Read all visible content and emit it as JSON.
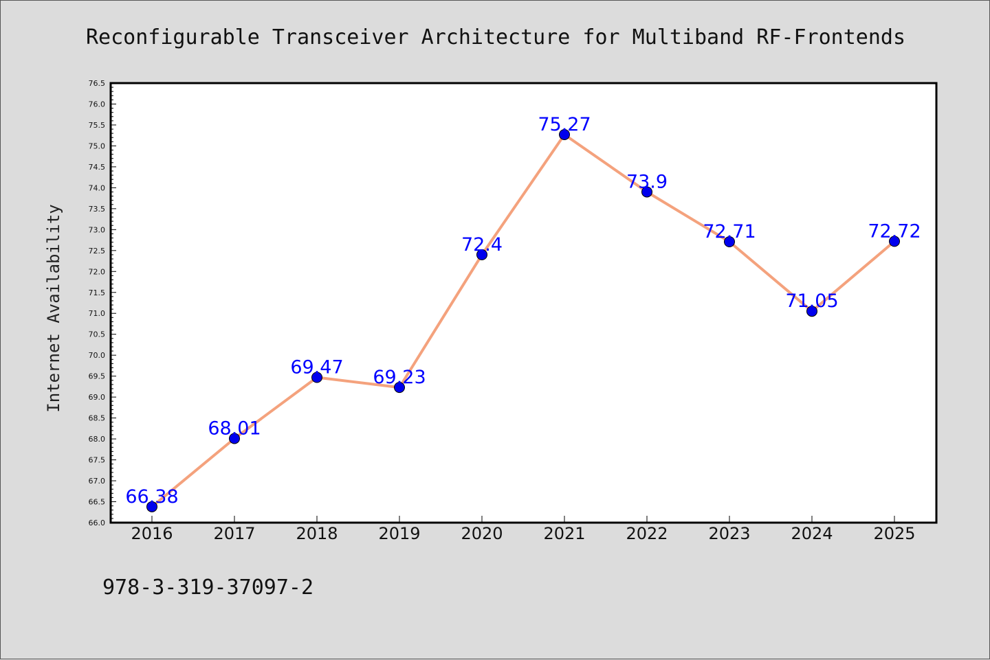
{
  "page": {
    "footer": "978-3-319-37097-2"
  },
  "colors": {
    "background": "#dcdcdc",
    "plot_background": "#ffffff",
    "line": "#f4a27d",
    "marker": "#0000ee",
    "data_label": "#0000ff"
  },
  "chart_data": {
    "type": "line",
    "title": "Reconfigurable Transceiver Architecture for Multiband RF-Frontends",
    "xlabel": "",
    "ylabel": "Internet Availability",
    "categories": [
      "2016",
      "2017",
      "2018",
      "2019",
      "2020",
      "2021",
      "2022",
      "2023",
      "2024",
      "2025"
    ],
    "series": [
      {
        "values": [
          66.38,
          68.01,
          69.47,
          69.23,
          72.4,
          75.27,
          73.9,
          72.71,
          71.05,
          72.72
        ],
        "labels": [
          "66.38",
          "68.01",
          "69.47",
          "69.23",
          "72.4",
          "75.27",
          "73.9",
          "72.71",
          "71.05",
          "72.72"
        ]
      }
    ],
    "ylim": [
      66.0,
      76.5
    ],
    "yticks": [
      "66.0",
      "66.5",
      "67.0",
      "67.5",
      "68.0",
      "68.5",
      "69.0",
      "69.5",
      "70.0",
      "70.5",
      "71.0",
      "71.5",
      "72.0",
      "72.5",
      "73.0",
      "73.5",
      "74.0",
      "74.5",
      "75.0",
      "75.5",
      "76.0",
      "76.5"
    ],
    "grid": false,
    "legend": "none"
  }
}
